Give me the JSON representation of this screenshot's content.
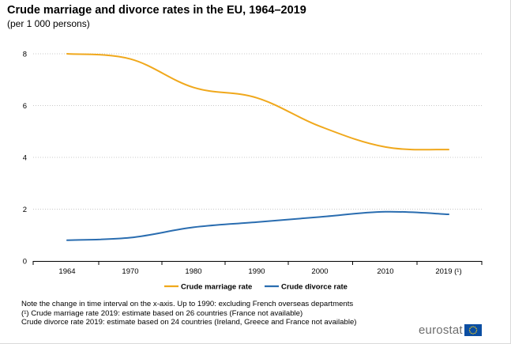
{
  "chart_data": {
    "type": "line",
    "title": "Crude marriage and divorce rates in the EU, 1964–2019",
    "subtitle": "(per 1 000 persons)",
    "categories": [
      "1964",
      "1970",
      "1980",
      "1990",
      "2000",
      "2010",
      "2019 (¹)"
    ],
    "series": [
      {
        "name": "Crude marriage rate",
        "color": "#f0a81c",
        "values": [
          8.0,
          7.8,
          6.7,
          6.3,
          5.2,
          4.4,
          4.3
        ]
      },
      {
        "name": "Crude divorce rate",
        "color": "#2a6db0",
        "values": [
          0.8,
          0.9,
          1.3,
          1.5,
          1.7,
          1.9,
          1.8
        ]
      }
    ],
    "y_ticks": [
      0,
      2,
      4,
      6,
      8
    ],
    "ylim": [
      0,
      8
    ],
    "grid": true,
    "legend_position": "bottom"
  },
  "notes": [
    "Note the change in time interval on the x-axis.  Up to 1990: excluding French overseas departments",
    "(¹) Crude marriage rate 2019: estimate based on 26 countries (France not available)",
    "Crude divorce rate 2019: estimate based on 24 countries (Ireland, Greece and France not available)"
  ],
  "logo": {
    "text": "eurostat",
    "flag_color": "#0b4ea2",
    "star_color": "#ffd617"
  }
}
